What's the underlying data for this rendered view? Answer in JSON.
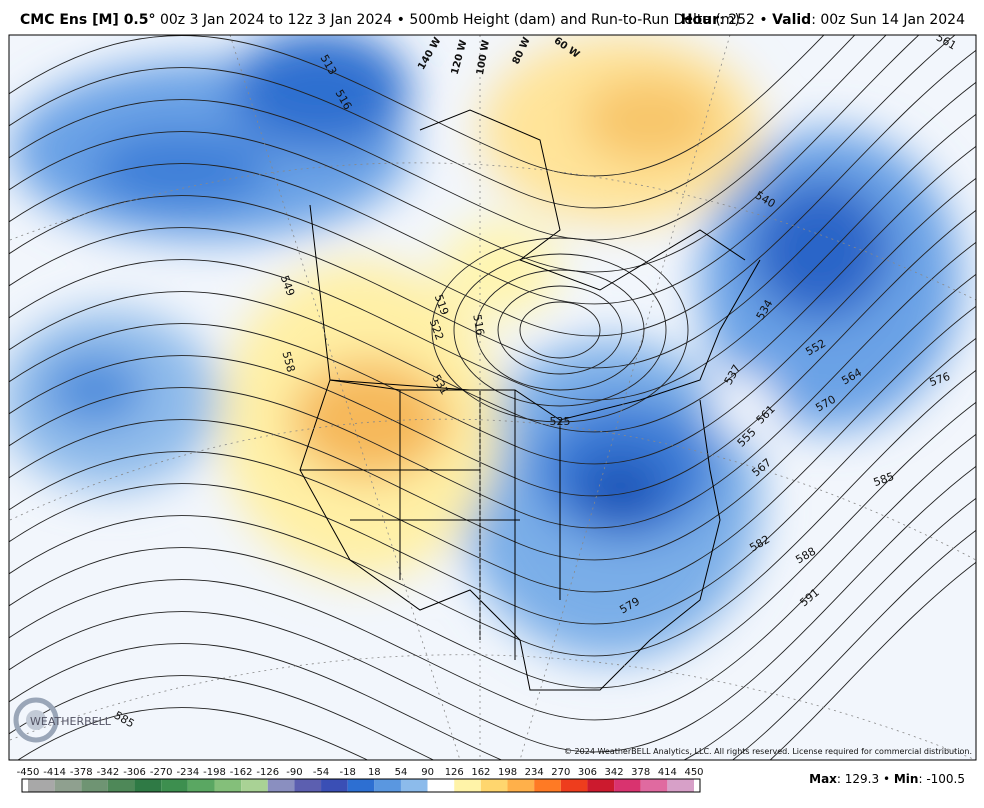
{
  "header": {
    "model": "CMC Ens [M] 0.5°",
    "description": "00z 3 Jan 2024 to 12z 3 Jan 2024 • 500mb Height (dam) and Run-to-Run Delta (m)",
    "hour_label": "Hour",
    "hour_text": ": 252 • ",
    "valid_label": "Valid",
    "valid_text": ": 00z Sun 14 Jan 2024"
  },
  "map": {
    "contour_labels": [
      513,
      516,
      549,
      558,
      519,
      522,
      516,
      531,
      525,
      540,
      534,
      537,
      552,
      564,
      576,
      570,
      561,
      555,
      567,
      585,
      582,
      588,
      591,
      579,
      585,
      561
    ],
    "longitude_labels": [
      "140 W",
      "120 W",
      "100 W",
      "80 W",
      "60 W"
    ],
    "logo": "WEATHERBELL",
    "copyright": "© 2024 WeatherBELL Analytics, LLC. All rights reserved. License required for commercial distribution."
  },
  "colorbar": {
    "ticks": [
      -450,
      -414,
      -378,
      -342,
      -306,
      -270,
      -234,
      -198,
      -162,
      -126,
      -90,
      -54,
      -18,
      18,
      54,
      90,
      126,
      162,
      198,
      234,
      270,
      306,
      342,
      378,
      414,
      450
    ],
    "colors": [
      "#a8a8a8",
      "#8fa08f",
      "#6f9473",
      "#4e8858",
      "#2f7a45",
      "#3d8f4f",
      "#5aa762",
      "#84bf7a",
      "#a9d295",
      "#8a8fc0",
      "#5c5fb0",
      "#3a4fb5",
      "#2d6fd2",
      "#5a97e0",
      "#8cbbeb",
      "#ffffff",
      "#fff3a8",
      "#ffd66e",
      "#ffb04a",
      "#ff7a24",
      "#ee3d1d",
      "#cc1a2e",
      "#d9336f",
      "#e06aa0",
      "#d7a0c8"
    ]
  },
  "stats": {
    "max_label": "Max",
    "max_sep": ": ",
    "max": 129.3,
    "mid_sep": " • ",
    "min_label": "Min",
    "min_sep": ": ",
    "min": -100.5
  }
}
